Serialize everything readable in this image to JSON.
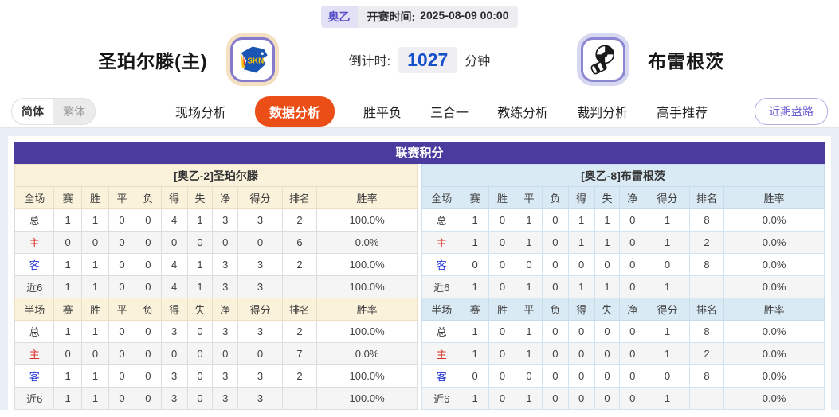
{
  "header": {
    "league_tag": "奥乙",
    "start_time_label": "开赛时间:",
    "start_time": "2025-08-09 00:00",
    "home_team": "圣珀尔滕(主)",
    "away_team": "布雷根茨",
    "home_logo": "skn-st-polten-crest",
    "away_logo": "bregenz-crest",
    "countdown_label": "倒计时:",
    "countdown_value": "1027",
    "countdown_unit": "分钟"
  },
  "nav": {
    "lang": [
      {
        "label": "简体",
        "active": true
      },
      {
        "label": "繁体",
        "active": false
      }
    ],
    "tabs": [
      {
        "label": "现场分析",
        "active": false
      },
      {
        "label": "数据分析",
        "active": true
      },
      {
        "label": "胜平负",
        "active": false
      },
      {
        "label": "三合一",
        "active": false
      },
      {
        "label": "教练分析",
        "active": false
      },
      {
        "label": "裁判分析",
        "active": false
      },
      {
        "label": "高手推荐",
        "active": false
      }
    ],
    "recent_button": "近期盘路"
  },
  "score_section": {
    "title": "联赛积分",
    "tables": [
      {
        "theme": "home",
        "title": "[奥乙-2]圣珀尔滕",
        "sections": [
          {
            "headers": [
              "全场",
              "赛",
              "胜",
              "平",
              "负",
              "得",
              "失",
              "净",
              "得分",
              "排名",
              "胜率"
            ],
            "rows": [
              {
                "label": "总",
                "type": "total",
                "cells": [
                  "1",
                  "1",
                  "0",
                  "0",
                  "4",
                  "1",
                  "3",
                  "3",
                  "2",
                  "100.0%"
                ]
              },
              {
                "label": "主",
                "type": "home",
                "cells": [
                  "0",
                  "0",
                  "0",
                  "0",
                  "0",
                  "0",
                  "0",
                  "0",
                  "6",
                  "0.0%"
                ]
              },
              {
                "label": "客",
                "type": "away",
                "cells": [
                  "1",
                  "1",
                  "0",
                  "0",
                  "4",
                  "1",
                  "3",
                  "3",
                  "2",
                  "100.0%"
                ]
              },
              {
                "label": "近6",
                "type": "recent",
                "cells": [
                  "1",
                  "1",
                  "0",
                  "0",
                  "4",
                  "1",
                  "3",
                  "3",
                  "",
                  "100.0%"
                ]
              }
            ]
          },
          {
            "headers": [
              "半场",
              "赛",
              "胜",
              "平",
              "负",
              "得",
              "失",
              "净",
              "得分",
              "排名",
              "胜率"
            ],
            "rows": [
              {
                "label": "总",
                "type": "total",
                "cells": [
                  "1",
                  "1",
                  "0",
                  "0",
                  "3",
                  "0",
                  "3",
                  "3",
                  "2",
                  "100.0%"
                ]
              },
              {
                "label": "主",
                "type": "home",
                "cells": [
                  "0",
                  "0",
                  "0",
                  "0",
                  "0",
                  "0",
                  "0",
                  "0",
                  "7",
                  "0.0%"
                ]
              },
              {
                "label": "客",
                "type": "away",
                "cells": [
                  "1",
                  "1",
                  "0",
                  "0",
                  "3",
                  "0",
                  "3",
                  "3",
                  "2",
                  "100.0%"
                ]
              },
              {
                "label": "近6",
                "type": "recent",
                "cells": [
                  "1",
                  "1",
                  "0",
                  "0",
                  "3",
                  "0",
                  "3",
                  "3",
                  "",
                  "100.0%"
                ]
              }
            ]
          }
        ]
      },
      {
        "theme": "away",
        "title": "[奥乙-8]布雷根茨",
        "sections": [
          {
            "headers": [
              "全场",
              "赛",
              "胜",
              "平",
              "负",
              "得",
              "失",
              "净",
              "得分",
              "排名",
              "胜率"
            ],
            "rows": [
              {
                "label": "总",
                "type": "total",
                "cells": [
                  "1",
                  "0",
                  "1",
                  "0",
                  "1",
                  "1",
                  "0",
                  "1",
                  "8",
                  "0.0%"
                ]
              },
              {
                "label": "主",
                "type": "home",
                "cells": [
                  "1",
                  "0",
                  "1",
                  "0",
                  "1",
                  "1",
                  "0",
                  "1",
                  "2",
                  "0.0%"
                ]
              },
              {
                "label": "客",
                "type": "away",
                "cells": [
                  "0",
                  "0",
                  "0",
                  "0",
                  "0",
                  "0",
                  "0",
                  "0",
                  "8",
                  "0.0%"
                ]
              },
              {
                "label": "近6",
                "type": "recent",
                "cells": [
                  "1",
                  "0",
                  "1",
                  "0",
                  "1",
                  "1",
                  "0",
                  "1",
                  "",
                  "0.0%"
                ]
              }
            ]
          },
          {
            "headers": [
              "半场",
              "赛",
              "胜",
              "平",
              "负",
              "得",
              "失",
              "净",
              "得分",
              "排名",
              "胜率"
            ],
            "rows": [
              {
                "label": "总",
                "type": "total",
                "cells": [
                  "1",
                  "0",
                  "1",
                  "0",
                  "0",
                  "0",
                  "0",
                  "1",
                  "8",
                  "0.0%"
                ]
              },
              {
                "label": "主",
                "type": "home",
                "cells": [
                  "1",
                  "0",
                  "1",
                  "0",
                  "0",
                  "0",
                  "0",
                  "1",
                  "2",
                  "0.0%"
                ]
              },
              {
                "label": "客",
                "type": "away",
                "cells": [
                  "0",
                  "0",
                  "0",
                  "0",
                  "0",
                  "0",
                  "0",
                  "0",
                  "8",
                  "0.0%"
                ]
              },
              {
                "label": "近6",
                "type": "recent",
                "cells": [
                  "1",
                  "0",
                  "1",
                  "0",
                  "0",
                  "0",
                  "0",
                  "1",
                  "",
                  "0.0%"
                ]
              }
            ]
          }
        ]
      }
    ]
  },
  "colors": {
    "accent_tab": "#eb4e17",
    "section_header": "#4b3b9e",
    "home_table_header": "#fbf2db",
    "away_table_header": "#daeaf4",
    "home_row_label": "#d93025",
    "away_row_label": "#2635d9",
    "countdown_number": "#1550c8",
    "league_tag_text": "#5a50c8"
  }
}
